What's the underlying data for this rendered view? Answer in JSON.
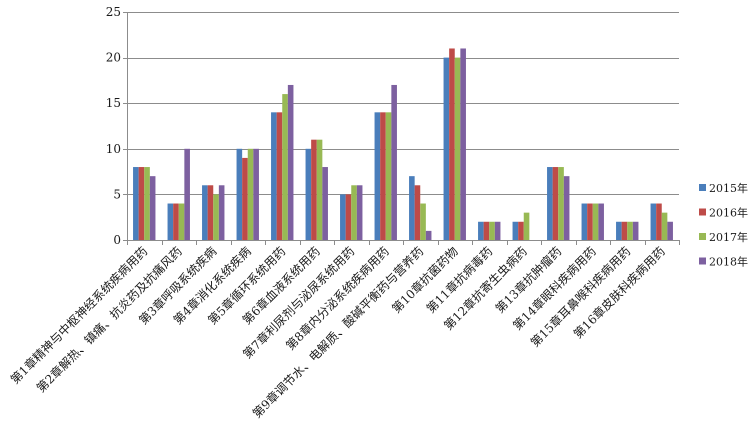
{
  "chart_data": {
    "type": "bar",
    "title": "",
    "xlabel": "",
    "ylabel": "",
    "ylim": [
      0,
      25
    ],
    "yticks": [
      0,
      5,
      10,
      15,
      20,
      25
    ],
    "grid": true,
    "legend_position": "right",
    "categories": [
      "第1章精神与中枢神经系统疾病用药",
      "第2章解热、镇痛、抗炎药及抗痛风药",
      "第3章呼吸系统疾病",
      "第4章消化系统疾病",
      "第5章循环系统用药",
      "第6章血液系统用药",
      "第7章利尿剂与泌尿系统用药",
      "第8章内分泌系统疾病用药",
      "第9章调节水、电解质、酸碱平衡药与营养药",
      "第10章抗菌药物",
      "第11章抗病毒药",
      "第12章抗寄生虫病药",
      "第13章抗肿瘤药",
      "第14章眼科疾病用药",
      "第15章耳鼻喉科疾病用药",
      "第16章皮肤科疾病用药"
    ],
    "series": [
      {
        "name": "2015年",
        "color": "#4a7ebb",
        "values": [
          8,
          4,
          6,
          10,
          14,
          10,
          5,
          14,
          7,
          20,
          2,
          2,
          8,
          4,
          2,
          4
        ]
      },
      {
        "name": "2016年",
        "color": "#be4b48",
        "values": [
          8,
          4,
          6,
          9,
          14,
          11,
          5,
          14,
          6,
          21,
          2,
          2,
          8,
          4,
          2,
          4
        ]
      },
      {
        "name": "2017年",
        "color": "#98b954",
        "values": [
          8,
          4,
          5,
          10,
          16,
          11,
          6,
          14,
          4,
          20,
          2,
          3,
          8,
          4,
          2,
          3
        ]
      },
      {
        "name": "2018年",
        "color": "#7d60a0",
        "values": [
          7,
          10,
          6,
          10,
          17,
          8,
          6,
          17,
          1,
          21,
          2,
          0,
          7,
          4,
          2,
          2
        ]
      }
    ]
  }
}
